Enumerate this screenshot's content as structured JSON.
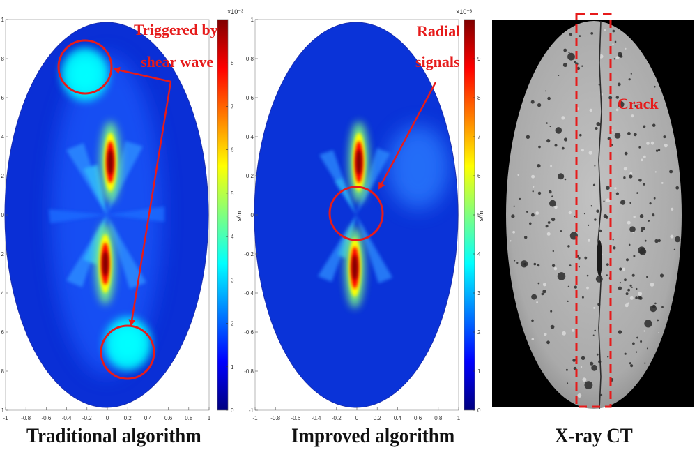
{
  "figure": {
    "captions": [
      "Traditional algorithm",
      "Improved algorithm",
      "X-ray CT"
    ]
  },
  "colors": {
    "annotation": "#e61b1b",
    "background": "#ffffff",
    "ct_background": "#000000",
    "ct_disk": "#b4b4b4",
    "jet_stops": [
      "#00007f",
      "#0000ff",
      "#007fff",
      "#00ffff",
      "#7fff7f",
      "#ffff00",
      "#ff7f00",
      "#ff0000",
      "#7f0000"
    ]
  },
  "chart_data": [
    {
      "type": "heatmap",
      "title": "Traditional algorithm",
      "xlim": [
        -1,
        1
      ],
      "ylim": [
        -1,
        1
      ],
      "x_ticks": [
        "-1",
        "-0.8",
        "-0.6",
        "-0.4",
        "-0.2",
        "0",
        "0.2",
        "0.4",
        "0.6",
        "0.8",
        "1"
      ],
      "y_ticks": [
        "1",
        "8",
        "6",
        "4",
        "2",
        "0",
        "2",
        "4",
        "6",
        "8",
        "1"
      ],
      "colorbar": {
        "label": "s/m",
        "exponent": "×10⁻³",
        "range": [
          0,
          9
        ],
        "ticks": [
          "8",
          "7",
          "6",
          "5",
          "4",
          "3",
          "2",
          "1",
          "0"
        ]
      },
      "hotspots": [
        {
          "x": 0.03,
          "y": 0.27,
          "value": 8.8
        },
        {
          "x": -0.02,
          "y": -0.25,
          "value": 8.2
        },
        {
          "x": -0.22,
          "y": 0.72,
          "value": 3.2
        },
        {
          "x": 0.2,
          "y": -0.66,
          "value": 3.0
        }
      ],
      "annotations": [
        {
          "text_lines": [
            "Triggered by",
            "shear wave"
          ]
        }
      ]
    },
    {
      "type": "heatmap",
      "title": "Improved algorithm",
      "xlim": [
        -1,
        1
      ],
      "ylim": [
        -1,
        1
      ],
      "x_ticks": [
        "-1",
        "-0.8",
        "-0.6",
        "-0.4",
        "-0.2",
        "0",
        "0.2",
        "0.4",
        "0.6",
        "0.8",
        "1"
      ],
      "y_ticks": [
        "1",
        "0.8",
        "0.6",
        "0.4",
        "0.2",
        "0",
        "-0.2",
        "-0.4",
        "-0.6",
        "-0.8",
        "-1"
      ],
      "colorbar": {
        "label": "s/m",
        "exponent": "×10⁻³",
        "range": [
          0,
          10
        ],
        "ticks": [
          "9",
          "8",
          "7",
          "6",
          "5",
          "4",
          "3",
          "2",
          "1",
          "0"
        ]
      },
      "hotspots": [
        {
          "x": 0.02,
          "y": 0.27,
          "value": 9.5
        },
        {
          "x": -0.02,
          "y": -0.27,
          "value": 9.8
        }
      ],
      "annotations": [
        {
          "text_lines": [
            "Radial",
            "signals"
          ]
        }
      ]
    },
    {
      "type": "image",
      "title": "X-ray CT",
      "annotations": [
        {
          "text": "Crack"
        }
      ]
    }
  ]
}
